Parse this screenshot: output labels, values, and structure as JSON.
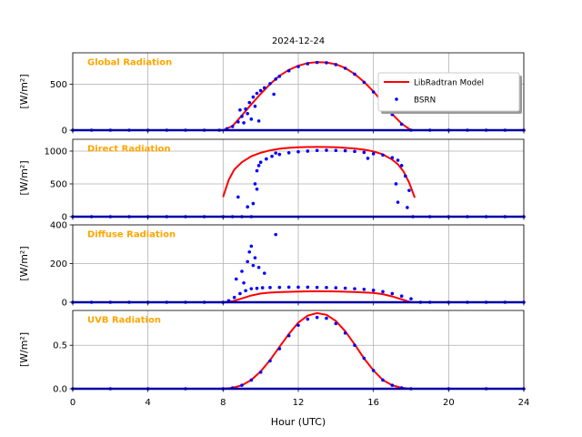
{
  "title": "2024-12-24",
  "xlabel": "Hour (UTC)",
  "x_ticks": [
    "0",
    "4",
    "8",
    "12",
    "16",
    "20",
    "24"
  ],
  "xlim": [
    0,
    24
  ],
  "label_color": "#FFA500",
  "model_color": "#FF0000",
  "obs_color": "#0000FF",
  "legend": {
    "placement": "top-right of first panel",
    "model_label": "LibRadtran Model",
    "obs_label": "BSRN"
  },
  "chart_data": [
    {
      "type": "line",
      "panel_label": "Global Radiation",
      "ylabel": "[W/m²]",
      "ylim": [
        0,
        840
      ],
      "y_ticks": [
        0,
        500
      ],
      "grid": true,
      "series": [
        {
          "name": "LibRadtran Model",
          "style": "line",
          "x": [
            8.0,
            8.5,
            9.0,
            9.5,
            10.0,
            10.5,
            11.0,
            11.5,
            12.0,
            12.5,
            13.0,
            13.5,
            14.0,
            14.5,
            15.0,
            15.5,
            16.0,
            16.5,
            17.0,
            17.5,
            18.0
          ],
          "y": [
            0,
            45,
            160,
            280,
            395,
            500,
            590,
            655,
            700,
            728,
            738,
            735,
            715,
            675,
            610,
            525,
            420,
            300,
            175,
            70,
            0
          ]
        },
        {
          "name": "BSRN",
          "style": "points",
          "x": [
            0.0,
            1.0,
            2.0,
            3.0,
            4.0,
            5.0,
            6.0,
            7.0,
            7.8,
            8.2,
            8.5,
            8.8,
            9.0,
            9.2,
            9.4,
            9.6,
            9.8,
            10.0,
            10.2,
            10.5,
            10.8,
            11.0,
            11.5,
            12.0,
            12.5,
            13.0,
            13.5,
            14.0,
            14.5,
            15.0,
            15.5,
            16.0,
            16.5,
            17.0,
            17.5,
            18.0,
            19.0,
            20.0,
            21.0,
            22.0,
            23.0,
            24.0,
            8.9,
            9.1,
            9.3,
            9.5,
            9.7,
            9.9,
            10.7
          ],
          "y": [
            0,
            0,
            0,
            0,
            0,
            0,
            0,
            0,
            0,
            15,
            40,
            90,
            150,
            230,
            300,
            360,
            400,
            430,
            460,
            505,
            555,
            585,
            645,
            690,
            722,
            735,
            732,
            712,
            672,
            608,
            520,
            415,
            295,
            170,
            65,
            0,
            0,
            0,
            0,
            0,
            0,
            0,
            220,
            80,
            180,
            120,
            260,
            100,
            390
          ]
        }
      ]
    },
    {
      "type": "line",
      "panel_label": "Direct Radiation",
      "ylabel": "[W/m²]",
      "ylim": [
        0,
        1180
      ],
      "y_ticks": [
        0,
        500,
        1000
      ],
      "grid": true,
      "series": [
        {
          "name": "LibRadtran Model",
          "style": "line",
          "x": [
            8.0,
            8.3,
            8.6,
            9.0,
            9.5,
            10.0,
            10.5,
            11.0,
            11.5,
            12.0,
            12.5,
            13.0,
            13.5,
            14.0,
            14.5,
            15.0,
            15.5,
            16.0,
            16.5,
            17.0,
            17.3,
            17.6,
            17.9,
            18.2
          ],
          "y": [
            300,
            560,
            720,
            830,
            920,
            975,
            1010,
            1035,
            1050,
            1058,
            1062,
            1063,
            1062,
            1058,
            1050,
            1040,
            1022,
            995,
            950,
            870,
            800,
            690,
            520,
            290
          ]
        },
        {
          "name": "BSRN",
          "style": "points",
          "x": [
            0.0,
            1.0,
            2.0,
            3.0,
            4.0,
            5.0,
            6.0,
            7.0,
            8.0,
            8.5,
            9.0,
            9.5,
            9.6,
            9.7,
            9.8,
            10.0,
            10.3,
            10.6,
            11.0,
            11.5,
            12.0,
            12.5,
            13.0,
            13.5,
            14.0,
            14.5,
            15.0,
            15.5,
            16.0,
            16.5,
            17.0,
            17.3,
            17.5,
            17.7,
            17.9,
            18.1,
            19.0,
            20.0,
            21.0,
            22.0,
            23.0,
            24.0,
            8.8,
            9.3,
            9.8,
            9.9,
            10.8,
            15.7,
            17.2,
            17.3,
            17.8
          ],
          "y": [
            0,
            0,
            0,
            0,
            0,
            0,
            0,
            0,
            0,
            0,
            0,
            0,
            200,
            500,
            700,
            830,
            880,
            920,
            950,
            975,
            990,
            1000,
            1010,
            1012,
            1010,
            1005,
            995,
            980,
            960,
            940,
            900,
            860,
            780,
            620,
            400,
            0,
            0,
            0,
            0,
            0,
            0,
            0,
            300,
            150,
            420,
            780,
            970,
            890,
            500,
            220,
            140
          ]
        }
      ]
    },
    {
      "type": "line",
      "panel_label": "Diffuse Radiation",
      "ylabel": "[W/m²]",
      "ylim": [
        0,
        400
      ],
      "y_ticks": [
        0,
        200,
        400
      ],
      "grid": true,
      "series": [
        {
          "name": "LibRadtran Model",
          "style": "line",
          "x": [
            8.0,
            8.5,
            9.0,
            9.5,
            10.0,
            10.5,
            11.0,
            12.0,
            13.0,
            14.0,
            15.0,
            16.0,
            16.5,
            17.0,
            17.5,
            18.0
          ],
          "y": [
            0,
            5,
            20,
            35,
            45,
            50,
            52,
            55,
            57,
            56,
            53,
            48,
            42,
            30,
            15,
            0
          ]
        },
        {
          "name": "BSRN",
          "style": "points",
          "x": [
            0.0,
            1.0,
            2.0,
            3.0,
            4.0,
            5.0,
            6.0,
            7.0,
            8.0,
            8.3,
            8.6,
            8.9,
            9.2,
            9.5,
            9.8,
            10.1,
            10.5,
            11.0,
            11.5,
            12.0,
            12.5,
            13.0,
            13.5,
            14.0,
            14.5,
            15.0,
            15.5,
            16.0,
            16.5,
            17.0,
            17.5,
            18.0,
            18.5,
            19.0,
            20.0,
            21.0,
            22.0,
            23.0,
            24.0,
            8.7,
            9.0,
            9.3,
            9.4,
            9.5,
            9.7,
            9.9,
            10.2,
            10.8,
            9.1,
            9.6
          ],
          "y": [
            0,
            0,
            0,
            0,
            0,
            0,
            0,
            0,
            0,
            8,
            25,
            45,
            60,
            70,
            72,
            75,
            76,
            77,
            78,
            78,
            78,
            77,
            76,
            75,
            73,
            70,
            67,
            62,
            55,
            45,
            32,
            18,
            0,
            0,
            0,
            0,
            0,
            0,
            0,
            120,
            160,
            210,
            260,
            290,
            230,
            180,
            150,
            350,
            100,
            190
          ]
        }
      ]
    },
    {
      "type": "line",
      "panel_label": "UVB Radiation",
      "ylabel": "[W/m²]",
      "ylim": [
        0,
        0.9
      ],
      "y_ticks": [
        0.0,
        0.5
      ],
      "grid": true,
      "series": [
        {
          "name": "LibRadtran Model",
          "style": "line",
          "x": [
            8.0,
            8.5,
            9.0,
            9.5,
            10.0,
            10.5,
            11.0,
            11.5,
            12.0,
            12.5,
            13.0,
            13.5,
            14.0,
            14.5,
            15.0,
            15.5,
            16.0,
            16.5,
            17.0,
            17.5,
            18.0
          ],
          "y": [
            0.0,
            0.01,
            0.04,
            0.1,
            0.2,
            0.33,
            0.48,
            0.63,
            0.76,
            0.84,
            0.87,
            0.85,
            0.78,
            0.66,
            0.51,
            0.35,
            0.21,
            0.1,
            0.04,
            0.01,
            0.0
          ]
        },
        {
          "name": "BSRN",
          "style": "points",
          "x": [
            0.0,
            2.0,
            4.0,
            6.0,
            8.0,
            8.5,
            9.0,
            9.5,
            10.0,
            10.5,
            11.0,
            11.5,
            12.0,
            12.5,
            13.0,
            13.5,
            14.0,
            14.5,
            15.0,
            15.5,
            16.0,
            16.5,
            17.0,
            17.5,
            18.0,
            20.0,
            22.0,
            24.0
          ],
          "y": [
            0.0,
            0.0,
            0.0,
            0.0,
            0.0,
            0.01,
            0.04,
            0.1,
            0.19,
            0.32,
            0.46,
            0.61,
            0.73,
            0.8,
            0.82,
            0.81,
            0.75,
            0.64,
            0.5,
            0.35,
            0.21,
            0.1,
            0.04,
            0.01,
            0.0,
            0.0,
            0.0,
            0.0
          ]
        }
      ]
    }
  ]
}
